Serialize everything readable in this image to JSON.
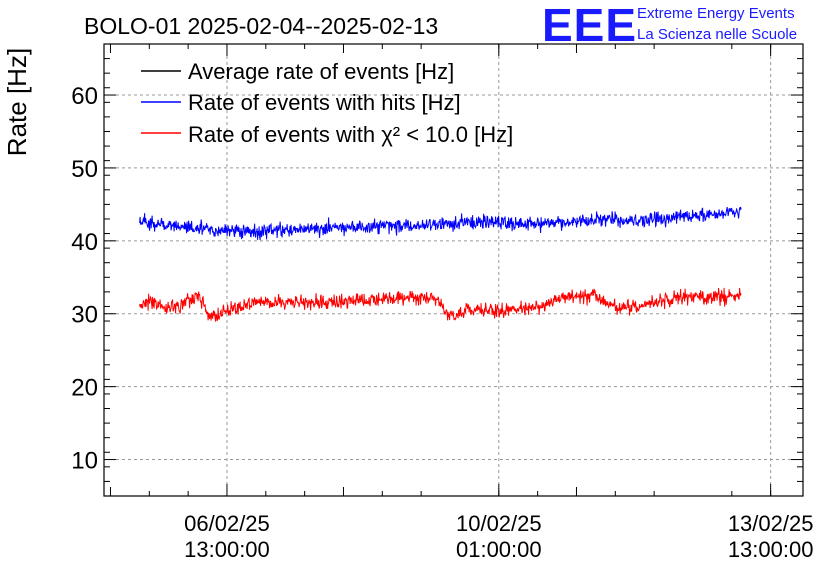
{
  "logo": {
    "mark": "EEE",
    "line1": "Extreme Energy Events",
    "line2": "La Scienza nelle Scuole",
    "color": "#1a1aff"
  },
  "chart_data": {
    "type": "line",
    "title": "BOLO-01 2025-02-04--2025-02-13",
    "ylabel": "Rate [Hz]",
    "xlabel": "",
    "ylim": [
      5,
      67
    ],
    "yticks": [
      10,
      20,
      30,
      40,
      50,
      60
    ],
    "xlim": [
      "2025-02-04T23:00:00",
      "2025-02-13T23:00:00"
    ],
    "xticks": [
      {
        "x": "2025-02-06T13:00:00",
        "date": "06/02/25",
        "time": "13:00:00"
      },
      {
        "x": "2025-02-10T01:00:00",
        "date": "10/02/25",
        "time": "01:00:00"
      },
      {
        "x": "2025-02-13T13:00:00",
        "date": "13/02/25",
        "time": "13:00:00"
      }
    ],
    "grid": true,
    "legend_position": "top-left",
    "x_start": "2025-02-05T10:00:00",
    "x_end": "2025-02-13T04:00:00",
    "series": [
      {
        "name": "Average rate of events [Hz]",
        "color": "#000000",
        "x": [],
        "y": []
      },
      {
        "name": "Rate of events with hits [Hz]",
        "color": "#0000ff",
        "x": [
          "2025-02-05T10:00:00",
          "2025-02-05T22:00:00",
          "2025-02-06T10:00:00",
          "2025-02-06T22:00:00",
          "2025-02-07T10:00:00",
          "2025-02-07T22:00:00",
          "2025-02-08T10:00:00",
          "2025-02-08T22:00:00",
          "2025-02-09T10:00:00",
          "2025-02-09T22:00:00",
          "2025-02-10T10:00:00",
          "2025-02-10T22:00:00",
          "2025-02-11T10:00:00",
          "2025-02-11T22:00:00",
          "2025-02-12T10:00:00",
          "2025-02-12T22:00:00",
          "2025-02-13T04:00:00"
        ],
        "y": [
          42.8,
          42.0,
          41.3,
          41.2,
          41.6,
          41.9,
          42.0,
          42.1,
          42.4,
          42.5,
          42.3,
          42.6,
          42.9,
          42.8,
          43.3,
          43.8,
          43.9
        ]
      },
      {
        "name": "Rate of events with χ² < 10.0 [Hz]",
        "color": "#ff0000",
        "x": [
          "2025-02-05T10:00:00",
          "2025-02-05T22:00:00",
          "2025-02-06T04:00:00",
          "2025-02-06T08:00:00",
          "2025-02-06T12:00:00",
          "2025-02-06T22:00:00",
          "2025-02-07T10:00:00",
          "2025-02-07T22:00:00",
          "2025-02-08T10:00:00",
          "2025-02-08T22:00:00",
          "2025-02-09T06:00:00",
          "2025-02-09T10:00:00",
          "2025-02-09T16:00:00",
          "2025-02-09T22:00:00",
          "2025-02-10T06:00:00",
          "2025-02-10T12:00:00",
          "2025-02-10T22:00:00",
          "2025-02-11T06:00:00",
          "2025-02-11T14:00:00",
          "2025-02-11T22:00:00",
          "2025-02-12T10:00:00",
          "2025-02-12T22:00:00",
          "2025-02-13T04:00:00"
        ],
        "y": [
          31.5,
          31.0,
          32.5,
          29.3,
          30.2,
          31.5,
          31.6,
          31.6,
          32.1,
          32.3,
          32.0,
          29.5,
          30.5,
          30.3,
          30.5,
          30.8,
          32.3,
          32.5,
          30.8,
          31.4,
          32.3,
          32.3,
          32.6
        ]
      }
    ]
  }
}
